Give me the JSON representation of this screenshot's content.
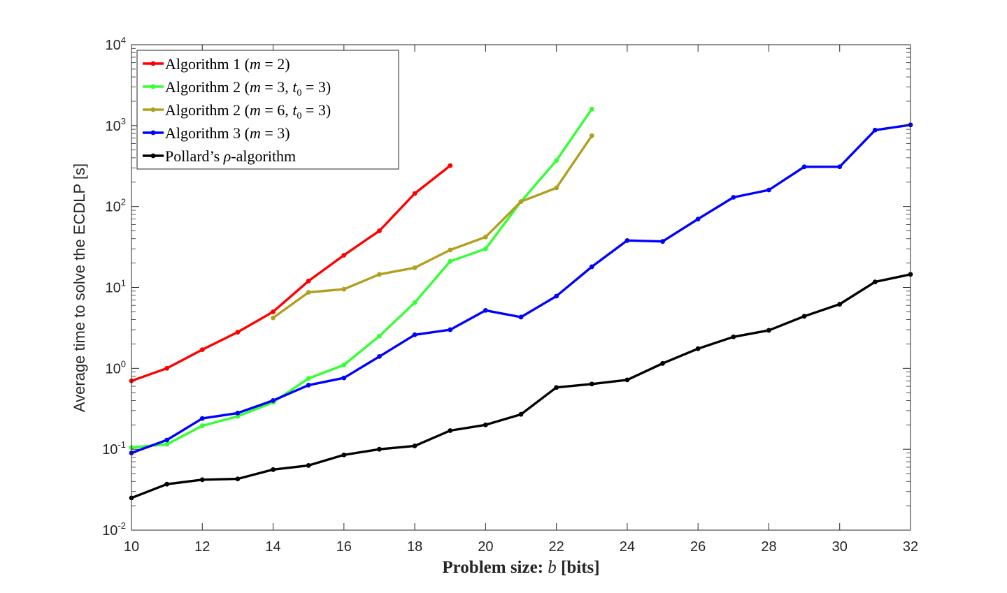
{
  "chart_data": {
    "type": "line",
    "title": "",
    "xlabel": "Problem size: b [bits]",
    "xlabel_prefix": "Problem size: ",
    "xlabel_var": "b",
    "xlabel_suffix": " [bits]",
    "ylabel": "Average time to solve the ECDLP [s]",
    "xlim": [
      10,
      32
    ],
    "ylim": [
      0.01,
      10000
    ],
    "yscale": "log",
    "xticks": [
      "10",
      "12",
      "14",
      "16",
      "18",
      "20",
      "22",
      "24",
      "26",
      "28",
      "30",
      "32"
    ],
    "yticks": [
      {
        "base": "10",
        "exp": "-2"
      },
      {
        "base": "10",
        "exp": "-1"
      },
      {
        "base": "10",
        "exp": "0"
      },
      {
        "base": "10",
        "exp": "1"
      },
      {
        "base": "10",
        "exp": "2"
      },
      {
        "base": "10",
        "exp": "3"
      },
      {
        "base": "10",
        "exp": "4"
      }
    ],
    "grid": false,
    "legend_position": "top-left",
    "series": [
      {
        "name": "Algorithm 1 (m = 2)",
        "color": "#ff0000",
        "legend_parts": [
          {
            "t": "Algorithm 1 ("
          },
          {
            "t": "m",
            "i": true
          },
          {
            "t": " = 2)"
          }
        ],
        "x": [
          10,
          11,
          12,
          13,
          14,
          15,
          16,
          17,
          18,
          19
        ],
        "y": [
          0.7,
          1.0,
          1.7,
          2.8,
          5.0,
          12.0,
          25.0,
          50.0,
          145.0,
          320.0
        ]
      },
      {
        "name": "Algorithm 2 (m = 3, t0 = 3)",
        "color": "#33ff33",
        "legend_parts": [
          {
            "t": "Algorithm 2 ("
          },
          {
            "t": "m",
            "i": true
          },
          {
            "t": " = 3, "
          },
          {
            "t": "t",
            "i": true
          },
          {
            "t": "0",
            "sub": true
          },
          {
            "t": " = 3)"
          }
        ],
        "x": [
          10,
          11,
          12,
          13,
          14,
          15,
          16,
          17,
          18,
          19,
          20,
          21,
          22,
          23
        ],
        "y": [
          0.105,
          0.115,
          0.195,
          0.255,
          0.38,
          0.75,
          1.1,
          2.5,
          6.5,
          21.0,
          30.0,
          115.0,
          370.0,
          1600.0
        ]
      },
      {
        "name": "Algorithm 2 (m = 6, t0 = 3)",
        "color": "#b0a020",
        "legend_parts": [
          {
            "t": "Algorithm 2 ("
          },
          {
            "t": "m",
            "i": true
          },
          {
            "t": " = 6, "
          },
          {
            "t": "t",
            "i": true
          },
          {
            "t": "0",
            "sub": true
          },
          {
            "t": " = 3)"
          }
        ],
        "x": [
          14,
          15,
          16,
          17,
          18,
          19,
          20,
          21,
          22,
          23
        ],
        "y": [
          4.2,
          8.7,
          9.5,
          14.5,
          17.5,
          29.0,
          42.0,
          115.0,
          170.0,
          750.0
        ]
      },
      {
        "name": "Algorithm 3 (m = 3)",
        "color": "#0000ff",
        "legend_parts": [
          {
            "t": "Algorithm 3 ("
          },
          {
            "t": "m",
            "i": true
          },
          {
            "t": " = 3)"
          }
        ],
        "x": [
          10,
          11,
          12,
          13,
          14,
          15,
          16,
          17,
          18,
          19,
          20,
          21,
          22,
          23,
          24,
          25,
          26,
          27,
          28,
          29,
          30,
          31,
          32
        ],
        "y": [
          0.09,
          0.13,
          0.24,
          0.28,
          0.4,
          0.62,
          0.76,
          1.4,
          2.6,
          3.0,
          5.2,
          4.3,
          7.8,
          18.0,
          38.0,
          37.0,
          70.0,
          130.0,
          160.0,
          310.0,
          310.0,
          880.0,
          1020.0
        ]
      },
      {
        "name": "Pollard's ρ-algorithm",
        "color": "#000000",
        "legend_parts": [
          {
            "t": "Pollard’s "
          },
          {
            "t": "ρ",
            "i": true
          },
          {
            "t": "-algorithm"
          }
        ],
        "x": [
          10,
          11,
          12,
          13,
          14,
          15,
          16,
          17,
          18,
          19,
          20,
          21,
          22,
          23,
          24,
          25,
          26,
          27,
          28,
          29,
          30,
          31,
          32
        ],
        "y": [
          0.025,
          0.037,
          0.042,
          0.043,
          0.056,
          0.063,
          0.085,
          0.1,
          0.11,
          0.17,
          0.2,
          0.27,
          0.58,
          0.64,
          0.72,
          1.15,
          1.75,
          2.45,
          2.95,
          4.4,
          6.2,
          11.7,
          14.5
        ]
      }
    ]
  }
}
